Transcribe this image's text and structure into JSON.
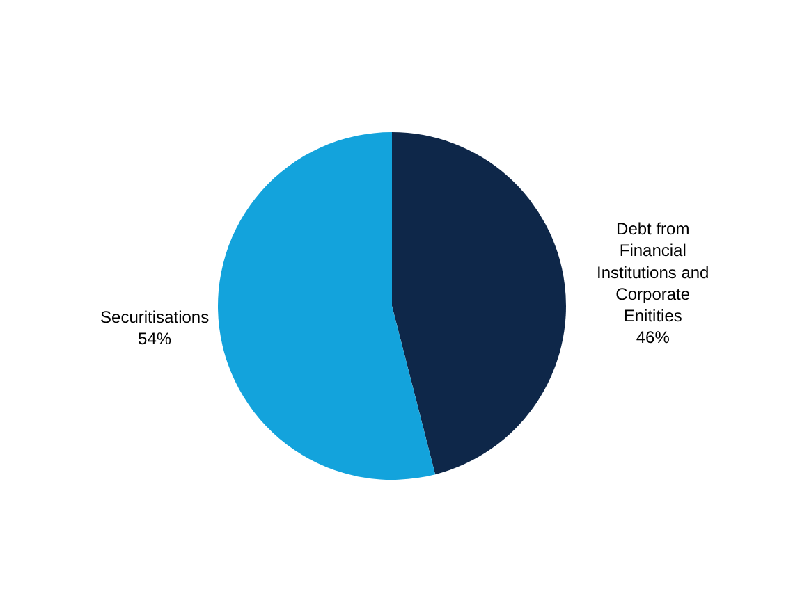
{
  "chart_data": {
    "type": "pie",
    "categories": [
      "Debt from Financial Institutions and Corporate Enitities",
      "Securitisations"
    ],
    "values": [
      46,
      54
    ],
    "colors": [
      "#0e2749",
      "#13a3dc"
    ],
    "value_labels": [
      "46%",
      "54%"
    ],
    "legend": false
  }
}
